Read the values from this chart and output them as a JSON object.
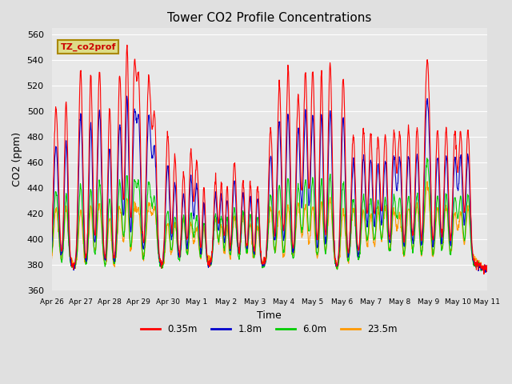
{
  "title": "Tower CO2 Profile Concentrations",
  "xlabel": "Time",
  "ylabel": "CO2 (ppm)",
  "ylim": [
    360,
    565
  ],
  "yticks": [
    360,
    380,
    400,
    420,
    440,
    460,
    480,
    500,
    520,
    540,
    560
  ],
  "colors": {
    "0.35m": "#ff0000",
    "1.8m": "#0000cc",
    "6.0m": "#00cc00",
    "23.5m": "#ff9900"
  },
  "legend_label": "TZ_co2prof",
  "legend_label_bg": "#dddd88",
  "legend_label_edge": "#aa8800",
  "bg_color": "#e0e0e0",
  "axes_bg_color": "#e8e8e8",
  "grid_color": "#ffffff",
  "x_tick_labels": [
    "Apr 26",
    "Apr 27",
    "Apr 28",
    "Apr 29",
    "Apr 30",
    "May 1",
    "May 2",
    "May 3",
    "May 4",
    "May 5",
    "May 6",
    "May 7",
    "May 8",
    "May 9",
    "May 10",
    "May 11"
  ],
  "line_width": 0.8,
  "figsize": [
    6.4,
    4.8
  ],
  "dpi": 100
}
